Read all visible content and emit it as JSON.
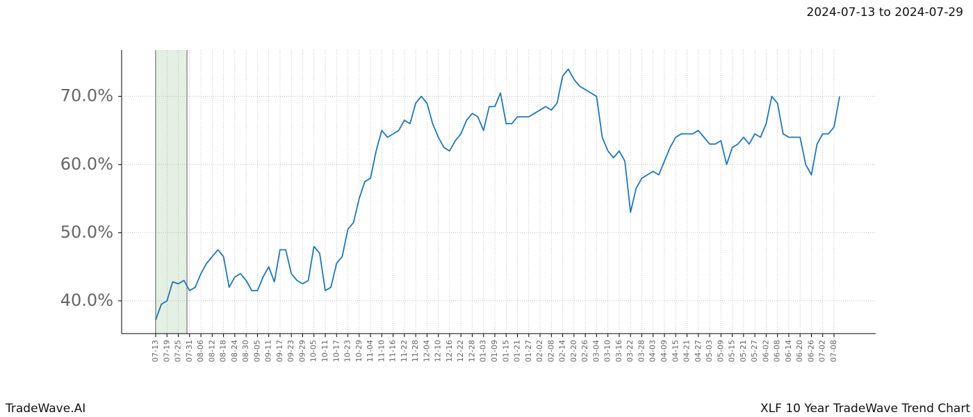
{
  "header": {
    "date_range": "2024-07-13 to 2024-07-29"
  },
  "footer": {
    "brand": "TradeWave.AI",
    "title": "XLF 10 Year TradeWave Trend Chart"
  },
  "chart_data": {
    "type": "line",
    "categories": [
      "07-13",
      null,
      "07-19",
      null,
      "07-25",
      null,
      "07-31",
      null,
      "08-06",
      null,
      "08-12",
      null,
      "08-18",
      null,
      "08-24",
      null,
      "08-30",
      null,
      "09-05",
      null,
      "09-11",
      null,
      "09-17",
      null,
      "09-23",
      null,
      "09-29",
      null,
      "10-05",
      null,
      "10-11",
      null,
      "10-17",
      null,
      "10-23",
      null,
      "10-29",
      null,
      "11-04",
      null,
      "11-10",
      null,
      "11-16",
      null,
      "11-22",
      null,
      "11-28",
      null,
      "12-04",
      null,
      "12-10",
      null,
      "12-16",
      null,
      "12-22",
      null,
      "12-28",
      null,
      "01-03",
      null,
      "01-09",
      null,
      "01-15",
      null,
      "01-21",
      null,
      "01-27",
      null,
      "02-02",
      null,
      "02-08",
      null,
      "02-14",
      null,
      "02-20",
      null,
      "02-26",
      null,
      "03-04",
      null,
      "03-10",
      null,
      "03-16",
      null,
      "03-22",
      null,
      "03-28",
      null,
      "04-03",
      null,
      "04-09",
      null,
      "04-15",
      null,
      "04-21",
      null,
      "04-27",
      null,
      "05-03",
      null,
      "05-09",
      null,
      "05-15",
      null,
      "05-21",
      null,
      "05-27",
      null,
      "06-02",
      null,
      "06-08",
      null,
      "06-14",
      null,
      "06-20",
      null,
      "06-26",
      null,
      "07-02",
      null,
      "07-08",
      null
    ],
    "series": [
      {
        "color": "#1f77b4",
        "values": [
          37.2,
          39.5,
          40,
          42.8,
          42.5,
          43,
          41.5,
          42,
          44,
          45.5,
          46.5,
          47.5,
          46.5,
          42,
          43.5,
          44,
          43,
          41.5,
          41.5,
          43.5,
          45,
          42.8,
          47.5,
          47.5,
          44,
          43,
          42.5,
          43,
          48,
          47,
          41.5,
          42,
          45.5,
          46.5,
          50.5,
          51.5,
          55,
          57.5,
          58,
          62,
          65,
          64,
          64.5,
          65,
          66.5,
          66,
          69,
          70,
          69,
          66,
          64,
          62.5,
          62,
          63.5,
          64.5,
          66.5,
          67.5,
          67,
          65,
          68.5,
          68.5,
          70.5,
          66,
          66,
          67,
          67,
          67,
          67.5,
          68,
          68.5,
          68,
          69,
          73,
          74,
          72.5,
          71.5,
          71,
          70.5,
          70,
          64,
          62,
          61,
          62,
          60.5,
          53,
          56.5,
          58,
          58.5,
          59,
          58.5,
          60.5,
          62.5,
          64,
          64.5,
          64.5,
          64.5,
          65,
          64,
          63,
          63,
          63.5,
          60,
          62.5,
          63,
          64,
          63,
          64.5,
          64,
          66,
          70,
          69,
          64.5,
          64,
          64,
          64,
          60,
          58.5,
          63,
          64.5,
          64.5,
          65.5,
          70
        ]
      }
    ],
    "ylim": [
      35.2,
      76.8
    ],
    "yticks": [
      {
        "value": 40,
        "label": "40.0%"
      },
      {
        "value": 50,
        "label": "50.0%"
      },
      {
        "value": 60,
        "label": "60.0%"
      },
      {
        "value": 70,
        "label": "70.0%"
      }
    ],
    "grid": true
  }
}
